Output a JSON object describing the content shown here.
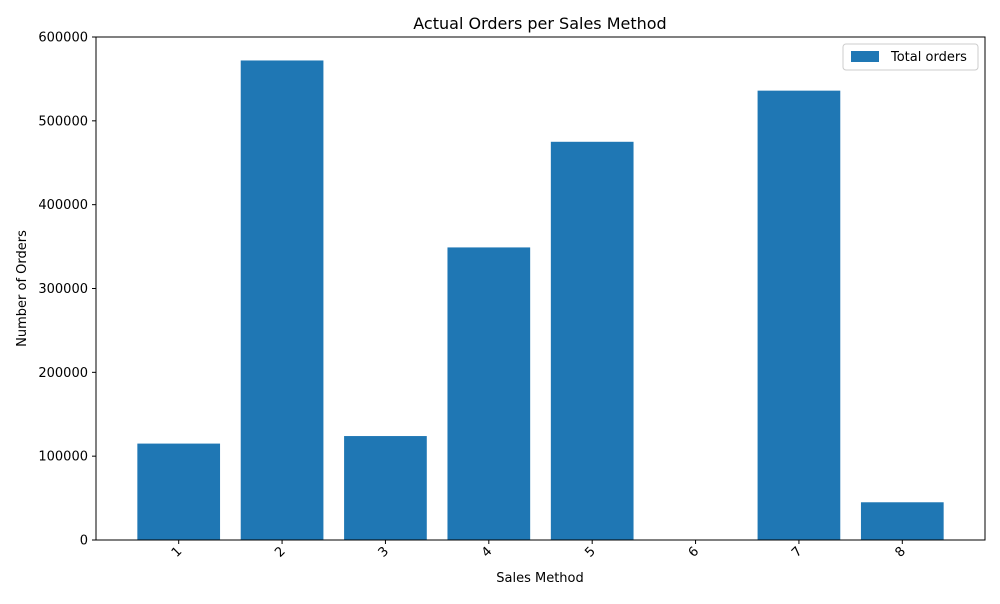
{
  "chart_data": {
    "type": "bar",
    "title": "Actual Orders per Sales Method",
    "xlabel": "Sales Method",
    "ylabel": "Number of Orders",
    "categories": [
      "1",
      "2",
      "3",
      "4",
      "5",
      "6",
      "7",
      "8"
    ],
    "series": [
      {
        "name": "Total orders",
        "values": [
          115000,
          572000,
          124000,
          349000,
          475000,
          0,
          536000,
          45000
        ],
        "color": "#1f77b4"
      }
    ],
    "ylim": [
      0,
      600000
    ],
    "yticks": [
      "0",
      "100000",
      "200000",
      "300000",
      "400000",
      "500000",
      "600000"
    ],
    "ytick_values": [
      0,
      100000,
      200000,
      300000,
      400000,
      500000,
      600000
    ],
    "xtick_rotation_deg": 45,
    "grid": false,
    "legend_position": "top-right"
  }
}
